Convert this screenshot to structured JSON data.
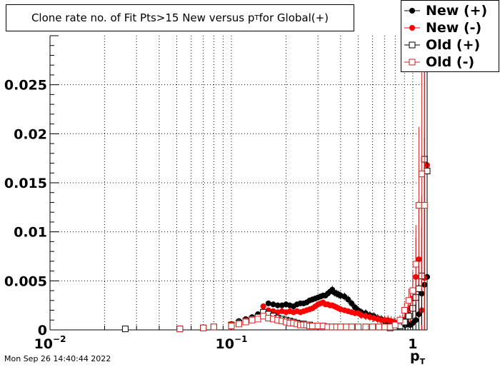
{
  "title": {
    "main": "Clone rate no. of Fit Pts>15 New versus p",
    "sub": "T",
    "tail": " for Global(+)"
  },
  "xlabel": {
    "main": "p",
    "sub": "T"
  },
  "footer": "Mon Sep 26 14:40:44 2022",
  "legend": [
    {
      "label": "New (+)",
      "color": "#000000",
      "marker": "filled-circle"
    },
    {
      "label": "New (-)",
      "color": "#ff0000",
      "marker": "filled-circle"
    },
    {
      "label": "Old (+)",
      "color": "#000000",
      "marker": "open-square"
    },
    {
      "label": "Old (-)",
      "color": "#cc2222",
      "marker": "open-square"
    }
  ],
  "chart_data": {
    "type": "scatter",
    "title": "Clone rate no. of Fit Pts>15 New versus pT for Global(+)",
    "xlabel": "pT",
    "ylabel": "",
    "x_scale": "log",
    "xlim": [
      0.01,
      1.2
    ],
    "ylim": [
      0,
      0.03
    ],
    "grid": true,
    "legend_position": "top-right",
    "x_ticks": [
      {
        "value": 0.01,
        "label": "10",
        "exp": "−2"
      },
      {
        "value": 0.1,
        "label": "10",
        "exp": "−1"
      },
      {
        "value": 1,
        "label": "1",
        "exp": ""
      }
    ],
    "y_ticks": [
      {
        "value": 0,
        "label": "0"
      },
      {
        "value": 0.005,
        "label": "0.005"
      },
      {
        "value": 0.01,
        "label": "0.01"
      },
      {
        "value": 0.015,
        "label": "0.015"
      },
      {
        "value": 0.02,
        "label": "0.02"
      },
      {
        "value": 0.025,
        "label": "0.025"
      }
    ],
    "series": [
      {
        "name": "New (+)",
        "color": "#000000",
        "marker": "filled-circle",
        "x": [
          0.052,
          0.07,
          0.08,
          0.1,
          0.11,
          0.12,
          0.13,
          0.14,
          0.15,
          0.16,
          0.17,
          0.18,
          0.19,
          0.2,
          0.21,
          0.22,
          0.23,
          0.24,
          0.25,
          0.26,
          0.27,
          0.28,
          0.29,
          0.3,
          0.31,
          0.32,
          0.33,
          0.34,
          0.35,
          0.36,
          0.37,
          0.38,
          0.39,
          0.4,
          0.42,
          0.44,
          0.46,
          0.48,
          0.5,
          0.52,
          0.55,
          0.58,
          0.61,
          0.64,
          0.67,
          0.7,
          0.73,
          0.76,
          0.79,
          0.82,
          0.85,
          0.88,
          0.91,
          0.94,
          0.97,
          1.0,
          1.04,
          1.08,
          1.12,
          1.16,
          1.2
        ],
        "y": [
          0.0001,
          0.0002,
          0.0003,
          0.0006,
          0.0009,
          0.0011,
          0.0013,
          0.0016,
          0.0024,
          0.0027,
          0.0026,
          0.0025,
          0.0025,
          0.0026,
          0.0025,
          0.0024,
          0.0026,
          0.0027,
          0.0027,
          0.0028,
          0.003,
          0.0031,
          0.0032,
          0.0033,
          0.0034,
          0.0035,
          0.0035,
          0.0037,
          0.0039,
          0.0041,
          0.0038,
          0.0037,
          0.0036,
          0.0035,
          0.0034,
          0.0031,
          0.0027,
          0.0023,
          0.002,
          0.0018,
          0.0017,
          0.0015,
          0.0014,
          0.0012,
          0.0011,
          0.0009,
          0.0008,
          0.0007,
          0.0007,
          0.0007,
          0.0006,
          0.0006,
          0.0005,
          0.0006,
          0.0005,
          0.0007,
          0.001,
          0.0016,
          0.0037,
          0.0046,
          0.0054
        ],
        "err": [
          0.0001,
          0.0001,
          0.0001,
          0.0002,
          0.0002,
          0.0002,
          0.0002,
          0.0003,
          0.0003,
          0.0003,
          0.0003,
          0.0003,
          0.0003,
          0.0003,
          0.0003,
          0.0003,
          0.0003,
          0.0003,
          0.0003,
          0.0003,
          0.0003,
          0.0003,
          0.0003,
          0.0003,
          0.0003,
          0.0003,
          0.0003,
          0.0003,
          0.0003,
          0.0004,
          0.0004,
          0.0004,
          0.0004,
          0.0004,
          0.0004,
          0.0004,
          0.0004,
          0.0004,
          0.0004,
          0.0004,
          0.0004,
          0.0004,
          0.0004,
          0.0004,
          0.0004,
          0.0004,
          0.0004,
          0.0004,
          0.0005,
          0.0005,
          0.0006,
          0.0007,
          0.0008,
          0.001,
          0.0015,
          0.002,
          0.003,
          0.005,
          0.01,
          0.015,
          0.025
        ]
      },
      {
        "name": "New (-)",
        "color": "#ff0000",
        "marker": "filled-circle",
        "x": [
          0.052,
          0.07,
          0.08,
          0.1,
          0.11,
          0.12,
          0.13,
          0.14,
          0.15,
          0.16,
          0.17,
          0.18,
          0.19,
          0.2,
          0.21,
          0.22,
          0.23,
          0.24,
          0.25,
          0.26,
          0.27,
          0.28,
          0.29,
          0.3,
          0.31,
          0.32,
          0.33,
          0.34,
          0.35,
          0.36,
          0.37,
          0.38,
          0.39,
          0.4,
          0.42,
          0.44,
          0.46,
          0.48,
          0.5,
          0.52,
          0.55,
          0.58,
          0.61,
          0.64,
          0.67,
          0.7,
          0.73,
          0.76,
          0.79,
          0.82,
          0.85,
          0.88,
          0.91,
          0.94,
          0.97,
          1.0,
          1.04,
          1.08,
          1.12,
          1.16,
          1.2
        ],
        "y": [
          0.0001,
          0.0002,
          0.0003,
          0.0006,
          0.0008,
          0.001,
          0.0011,
          0.0012,
          0.0024,
          0.002,
          0.0019,
          0.0018,
          0.0019,
          0.0018,
          0.0019,
          0.0018,
          0.0019,
          0.0018,
          0.0019,
          0.002,
          0.0021,
          0.0022,
          0.0024,
          0.0026,
          0.0027,
          0.0028,
          0.0026,
          0.0026,
          0.0025,
          0.0025,
          0.0024,
          0.0023,
          0.0022,
          0.0021,
          0.002,
          0.0019,
          0.0018,
          0.0017,
          0.0017,
          0.0015,
          0.0014,
          0.0013,
          0.0012,
          0.0011,
          0.001,
          0.001,
          0.001,
          0.0009,
          0.0008,
          0.0007,
          0.0007,
          0.0009,
          0.0011,
          0.0016,
          0.0022,
          0.0032,
          0.0054,
          0.0072,
          0.002,
          0.0053,
          0.0168
        ],
        "err": [
          0.0001,
          0.0001,
          0.0001,
          0.0002,
          0.0002,
          0.0002,
          0.0002,
          0.0003,
          0.0003,
          0.0003,
          0.0003,
          0.0003,
          0.0003,
          0.0003,
          0.0003,
          0.0003,
          0.0003,
          0.0003,
          0.0003,
          0.0003,
          0.0003,
          0.0003,
          0.0003,
          0.0003,
          0.0003,
          0.0003,
          0.0003,
          0.0003,
          0.0003,
          0.0003,
          0.0003,
          0.0003,
          0.0003,
          0.0003,
          0.0003,
          0.0003,
          0.0003,
          0.0003,
          0.0003,
          0.0004,
          0.0004,
          0.0004,
          0.0004,
          0.0004,
          0.0004,
          0.0004,
          0.0005,
          0.0005,
          0.0005,
          0.0005,
          0.0006,
          0.0007,
          0.0008,
          0.001,
          0.0015,
          0.002,
          0.004,
          0.006,
          0.006,
          0.01,
          0.018
        ]
      },
      {
        "name": "Old (+)",
        "color": "#000000",
        "marker": "open-square",
        "x": [
          0.026,
          0.052,
          0.07,
          0.08,
          0.1,
          0.11,
          0.12,
          0.13,
          0.14,
          0.15,
          0.16,
          0.17,
          0.18,
          0.19,
          0.2,
          0.21,
          0.22,
          0.23,
          0.24,
          0.25,
          0.26,
          0.27,
          0.28,
          0.29,
          0.3,
          0.32,
          0.34,
          0.36,
          0.38,
          0.4,
          0.43,
          0.46,
          0.5,
          0.55,
          0.6,
          0.65,
          0.7,
          0.75,
          0.8,
          0.85,
          0.9,
          0.95,
          1.0,
          1.04,
          1.08,
          1.12,
          1.16,
          1.2
        ],
        "y": [
          0.0001,
          0.0001,
          0.0002,
          0.0003,
          0.0005,
          0.0007,
          0.0009,
          0.0011,
          0.0013,
          0.0018,
          0.0016,
          0.0014,
          0.0012,
          0.0011,
          0.001,
          0.0009,
          0.0008,
          0.0007,
          0.0006,
          0.0006,
          0.0005,
          0.0005,
          0.0004,
          0.0004,
          0.0004,
          0.0004,
          0.0003,
          0.0003,
          0.0003,
          0.0003,
          0.0003,
          0.0003,
          0.0003,
          0.0003,
          0.0003,
          0.0003,
          0.0003,
          0.0002,
          0.0003,
          0.0004,
          0.0008,
          0.0014,
          0.0022,
          0.0033,
          0.0042,
          0.0055,
          0.0174,
          0.0162
        ],
        "err": [
          0.0001,
          0.0001,
          0.0001,
          0.0001,
          0.0002,
          0.0002,
          0.0002,
          0.0002,
          0.0002,
          0.0002,
          0.0002,
          0.0002,
          0.0002,
          0.0002,
          0.0002,
          0.0002,
          0.0002,
          0.0002,
          0.0002,
          0.0002,
          0.0002,
          0.0002,
          0.0002,
          0.0002,
          0.0002,
          0.0002,
          0.0002,
          0.0002,
          0.0002,
          0.0002,
          0.0002,
          0.0002,
          0.0002,
          0.0002,
          0.0002,
          0.0002,
          0.0002,
          0.0002,
          0.0002,
          0.0003,
          0.0005,
          0.0008,
          0.0012,
          0.002,
          0.003,
          0.005,
          0.012,
          0.02
        ]
      },
      {
        "name": "Old (-)",
        "color": "#cc2222",
        "marker": "open-square",
        "x": [
          0.052,
          0.07,
          0.08,
          0.1,
          0.11,
          0.12,
          0.13,
          0.14,
          0.15,
          0.16,
          0.17,
          0.18,
          0.19,
          0.2,
          0.21,
          0.22,
          0.23,
          0.24,
          0.25,
          0.26,
          0.27,
          0.28,
          0.3,
          0.32,
          0.34,
          0.36,
          0.38,
          0.4,
          0.43,
          0.46,
          0.5,
          0.55,
          0.6,
          0.65,
          0.7,
          0.75,
          0.8,
          0.85,
          0.9,
          0.95,
          1.0,
          1.04,
          1.08,
          1.12,
          1.16
        ],
        "y": [
          0.0001,
          0.0002,
          0.0003,
          0.0004,
          0.0006,
          0.0008,
          0.001,
          0.0011,
          0.0014,
          0.0012,
          0.0011,
          0.001,
          0.0009,
          0.0008,
          0.0007,
          0.0007,
          0.0006,
          0.0005,
          0.0005,
          0.0005,
          0.0004,
          0.0004,
          0.0004,
          0.0004,
          0.0003,
          0.0003,
          0.0003,
          0.0003,
          0.0003,
          0.0003,
          0.0003,
          0.0003,
          0.0003,
          0.0003,
          0.0003,
          0.0003,
          0.0005,
          0.001,
          0.002,
          0.003,
          0.004,
          0.0067,
          0.0127,
          0.0159,
          0.0127
        ],
        "err": [
          0.0001,
          0.0001,
          0.0001,
          0.0001,
          0.0002,
          0.0002,
          0.0002,
          0.0002,
          0.0002,
          0.0002,
          0.0002,
          0.0002,
          0.0002,
          0.0002,
          0.0002,
          0.0002,
          0.0002,
          0.0002,
          0.0002,
          0.0002,
          0.0002,
          0.0002,
          0.0002,
          0.0002,
          0.0002,
          0.0002,
          0.0002,
          0.0002,
          0.0002,
          0.0002,
          0.0002,
          0.0002,
          0.0002,
          0.0002,
          0.0002,
          0.0002,
          0.0003,
          0.0005,
          0.0008,
          0.0012,
          0.002,
          0.004,
          0.008,
          0.012,
          0.015
        ]
      }
    ]
  }
}
